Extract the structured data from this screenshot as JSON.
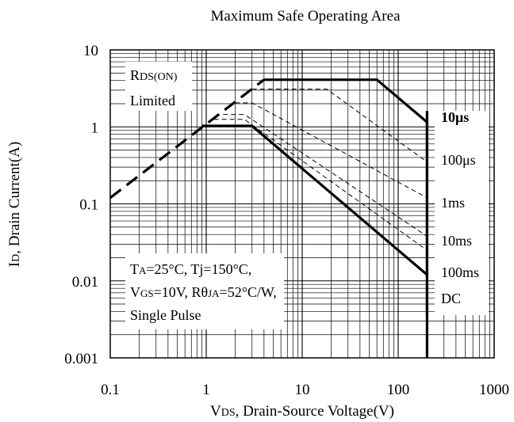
{
  "chart_data": {
    "type": "line",
    "title": "Maximum Safe Operating Area",
    "xlabel": {
      "main": "V",
      "sub": "DS",
      "rest": ", Drain-Source Voltage(V)"
    },
    "ylabel": {
      "main": "I",
      "sub": "D",
      "rest": ", Drain Current(A)"
    },
    "x_scale": "log",
    "y_scale": "log",
    "xlim": [
      0.1,
      1000
    ],
    "ylim": [
      0.001,
      10
    ],
    "x_ticks": [
      {
        "value": 0.1,
        "label": "0.1"
      },
      {
        "value": 1,
        "label": "1"
      },
      {
        "value": 10,
        "label": "10"
      },
      {
        "value": 100,
        "label": "100"
      },
      {
        "value": 1000,
        "label": "1000"
      }
    ],
    "y_ticks": [
      {
        "value": 0.001,
        "label": "0.001"
      },
      {
        "value": 0.01,
        "label": "0.01"
      },
      {
        "value": 0.1,
        "label": "0.1"
      },
      {
        "value": 1,
        "label": "1"
      },
      {
        "value": 10,
        "label": "10"
      }
    ],
    "grid": true,
    "rds_limit": {
      "label_line1_main": "R",
      "label_line1_sub": "DS(ON)",
      "label_line2": "Limited",
      "points": [
        [
          0.1,
          0.12
        ],
        [
          4,
          4.1
        ]
      ]
    },
    "series": [
      {
        "name": "10μs",
        "style": "solid-bold",
        "points": [
          [
            4,
            4.1
          ],
          [
            60,
            4.1
          ],
          [
            200,
            1.15
          ],
          [
            200,
            0.001
          ]
        ]
      },
      {
        "name": "100μs",
        "style": "dashed",
        "points": [
          [
            3,
            3.1
          ],
          [
            18,
            3.1
          ],
          [
            200,
            0.35
          ]
        ]
      },
      {
        "name": "1ms",
        "style": "dashed",
        "points": [
          [
            2,
            2.05
          ],
          [
            3,
            2.05
          ],
          [
            200,
            0.12
          ]
        ]
      },
      {
        "name": "10ms",
        "style": "dashed",
        "points": [
          [
            1.5,
            1.45
          ],
          [
            2.5,
            1.45
          ],
          [
            200,
            0.038
          ]
        ]
      },
      {
        "name": "100ms",
        "style": "dashed",
        "points": [
          [
            1.2,
            1.25
          ],
          [
            2.5,
            1.25
          ],
          [
            200,
            0.025
          ]
        ]
      },
      {
        "name": "DC",
        "style": "solid-bold",
        "points": [
          [
            0.9,
            1.03
          ],
          [
            3,
            1.03
          ],
          [
            200,
            0.012
          ]
        ]
      }
    ],
    "series_labels": [
      {
        "text": "10μs",
        "bold": true
      },
      {
        "text": "100μs",
        "bold": false
      },
      {
        "text": "1ms",
        "bold": false
      },
      {
        "text": "10ms",
        "bold": false
      },
      {
        "text": "100ms",
        "bold": false
      },
      {
        "text": "DC",
        "bold": false
      }
    ],
    "conditions": [
      {
        "parts": [
          {
            "t": "T"
          },
          {
            "t": "A",
            "sub": true
          },
          {
            "t": "=25°C, Tj=150°C,"
          }
        ]
      },
      {
        "parts": [
          {
            "t": "V"
          },
          {
            "t": "GS",
            "sub": true
          },
          {
            "t": "=10V, Rθ"
          },
          {
            "t": "JA",
            "sub": true
          },
          {
            "t": "=52°C/W,"
          }
        ]
      },
      {
        "parts": [
          {
            "t": "Single Pulse"
          }
        ]
      }
    ]
  }
}
